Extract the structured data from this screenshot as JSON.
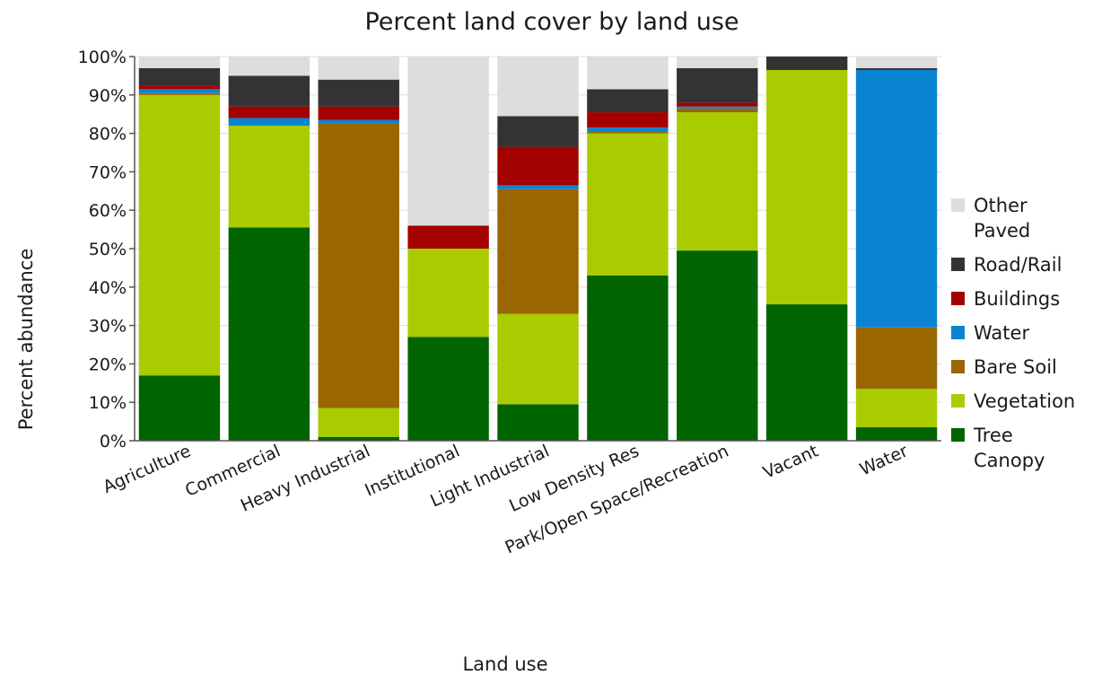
{
  "chart_data": {
    "type": "bar",
    "stacked": true,
    "title": "Percent land cover by land use",
    "xlabel": "Land use",
    "ylabel": "Percent abundance",
    "ylim": [
      0,
      100
    ],
    "yticks": [
      "0%",
      "10%",
      "20%",
      "30%",
      "40%",
      "50%",
      "60%",
      "70%",
      "80%",
      "90%",
      "100%"
    ],
    "categories": [
      "Agriculture",
      "Commercial",
      "Heavy Industrial",
      "Institutional",
      "Light Industrial",
      "Low Density Res",
      "Park/Open Space/Recreation",
      "Vacant",
      "Water"
    ],
    "legend_position": "right",
    "series": [
      {
        "name": "Tree Canopy",
        "color": "#006400",
        "values": [
          17,
          55.5,
          1,
          27,
          9.5,
          43,
          49.5,
          35.5,
          3.5
        ]
      },
      {
        "name": "Vegetation",
        "color": "#a8cc00",
        "values": [
          73,
          26.5,
          7.5,
          23,
          23.5,
          37,
          36,
          61,
          10
        ]
      },
      {
        "name": "Bare Soil",
        "color": "#996600",
        "values": [
          0.5,
          0,
          74,
          0,
          32.5,
          0.5,
          1,
          0,
          16
        ]
      },
      {
        "name": "Water",
        "color": "#0a84d0",
        "values": [
          1,
          2,
          1,
          0,
          1,
          1,
          0.5,
          0,
          67
        ]
      },
      {
        "name": "Buildings",
        "color": "#a30000",
        "values": [
          1,
          3,
          3.5,
          6,
          10,
          4,
          1,
          0,
          0
        ]
      },
      {
        "name": "Road/Rail",
        "color": "#333333",
        "values": [
          4.5,
          8,
          7,
          0,
          8,
          6,
          9,
          3.5,
          0.5
        ]
      },
      {
        "name": "Other Paved",
        "color": "#dddddd",
        "values": [
          3,
          5,
          6,
          44,
          15.5,
          8.5,
          3,
          0,
          3
        ]
      }
    ]
  }
}
